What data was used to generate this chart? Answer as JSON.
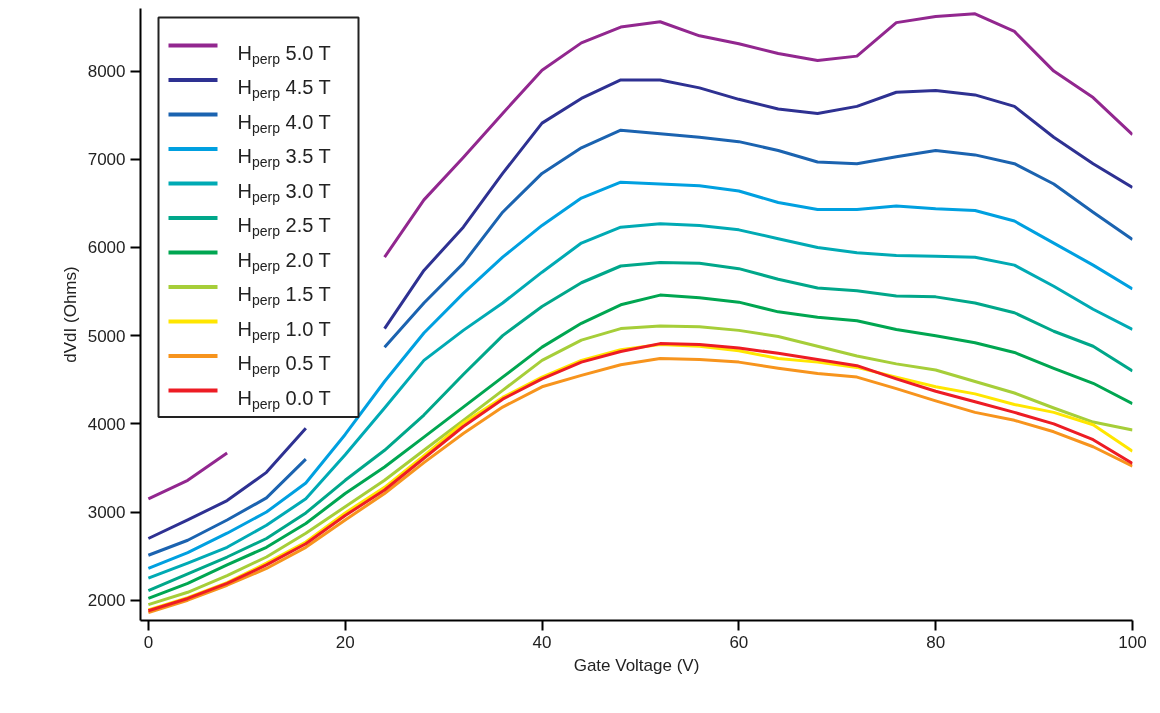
{
  "chart_data": {
    "type": "line",
    "xlabel": "Gate Voltage (V)",
    "ylabel": "dVdI (Ohms)",
    "xlim": [
      -0.8,
      100
    ],
    "ylim": [
      1770,
      8710
    ],
    "xticks": [
      0,
      20,
      40,
      60,
      80,
      100
    ],
    "yticks": [
      2000,
      3000,
      4000,
      5000,
      6000,
      7000,
      8000
    ],
    "grid": false,
    "legend": "top left",
    "marker": "none",
    "line_style": "solid",
    "x": [
      0,
      4,
      8,
      12,
      16,
      20,
      24,
      28,
      32,
      36,
      40,
      44,
      48,
      52,
      56,
      60,
      64,
      68,
      72,
      76,
      80,
      84,
      88,
      92,
      96,
      100
    ],
    "series": [
      {
        "name": "H$_{perp}$ 5.0 T",
        "color": "#92278f",
        "values": [
          3150,
          3360,
          3670,
          null,
          null,
          null,
          5890,
          6540,
          7020,
          7520,
          8010,
          8320,
          8500,
          8560,
          8400,
          8310,
          8200,
          8120,
          8170,
          8550,
          8620,
          8650,
          8450,
          8000,
          7700,
          7280
        ]
      },
      {
        "name": "H$_{perp}$ 4.5 T",
        "color": "#2e3192",
        "values": [
          2700,
          2910,
          3130,
          3450,
          3950,
          null,
          5080,
          5740,
          6230,
          6840,
          7410,
          7690,
          7900,
          7900,
          7810,
          7680,
          7570,
          7520,
          7600,
          7760,
          7780,
          7730,
          7600,
          7250,
          6950,
          6680
        ]
      },
      {
        "name": "H$_{perp}$ 4.0 T",
        "color": "#1b63b0",
        "values": [
          2510,
          2680,
          2910,
          3160,
          3600,
          null,
          4870,
          5370,
          5820,
          6400,
          6840,
          7130,
          7330,
          7290,
          7250,
          7200,
          7100,
          6970,
          6950,
          7030,
          7100,
          7050,
          6950,
          6720,
          6400,
          6090
        ]
      },
      {
        "name": "H$_{perp}$ 3.5 T",
        "color": "#00a0e0",
        "values": [
          2360,
          2540,
          2760,
          3000,
          3330,
          3880,
          4480,
          5030,
          5480,
          5890,
          6250,
          6560,
          6740,
          6720,
          6700,
          6640,
          6510,
          6430,
          6430,
          6470,
          6440,
          6420,
          6300,
          6050,
          5800,
          5530
        ]
      },
      {
        "name": "H$_{perp}$ 3.0 T",
        "color": "#00aab4",
        "values": [
          2250,
          2420,
          2600,
          2850,
          3150,
          3650,
          4180,
          4720,
          5060,
          5370,
          5720,
          6050,
          6230,
          6270,
          6250,
          6200,
          6100,
          6000,
          5940,
          5910,
          5900,
          5890,
          5800,
          5560,
          5300,
          5070
        ]
      },
      {
        "name": "H$_{perp}$ 2.5 T",
        "color": "#00a78a",
        "values": [
          2110,
          2300,
          2490,
          2700,
          2990,
          3360,
          3700,
          4100,
          4560,
          5000,
          5330,
          5600,
          5790,
          5830,
          5820,
          5760,
          5640,
          5540,
          5510,
          5450,
          5440,
          5370,
          5260,
          5050,
          4880,
          4600
        ]
      },
      {
        "name": "H$_{perp}$ 2.0 T",
        "color": "#00a651",
        "values": [
          2020,
          2190,
          2400,
          2600,
          2870,
          3210,
          3510,
          3850,
          4190,
          4530,
          4870,
          5140,
          5350,
          5460,
          5430,
          5380,
          5270,
          5210,
          5170,
          5070,
          5000,
          4920,
          4810,
          4630,
          4460,
          4230
        ]
      },
      {
        "name": "H$_{perp}$ 1.5 T",
        "color": "#a6ce39",
        "values": [
          1950,
          2090,
          2280,
          2490,
          2760,
          3060,
          3360,
          3700,
          4040,
          4380,
          4720,
          4950,
          5080,
          5110,
          5100,
          5060,
          4990,
          4880,
          4770,
          4680,
          4610,
          4480,
          4350,
          4180,
          4020,
          3930
        ]
      },
      {
        "name": "H$_{perp}$ 1.0 T",
        "color": "#ffe600",
        "values": [
          1890,
          2030,
          2200,
          2420,
          2660,
          2990,
          3280,
          3640,
          4010,
          4300,
          4530,
          4720,
          4840,
          4900,
          4880,
          4830,
          4740,
          4700,
          4640,
          4530,
          4420,
          4340,
          4220,
          4130,
          3990,
          3690
        ]
      },
      {
        "name": "H$_{perp}$ 0.5 T",
        "color": "#f7941d",
        "values": [
          1860,
          2000,
          2170,
          2360,
          2600,
          2910,
          3210,
          3560,
          3890,
          4190,
          4420,
          4550,
          4670,
          4740,
          4730,
          4700,
          4630,
          4570,
          4530,
          4400,
          4260,
          4130,
          4040,
          3910,
          3740,
          3520
        ]
      },
      {
        "name": "H$_{perp}$ 0.0 T",
        "color": "#ed1c24",
        "values": [
          1880,
          2020,
          2190,
          2400,
          2640,
          2960,
          3250,
          3610,
          3970,
          4280,
          4510,
          4700,
          4820,
          4910,
          4900,
          4860,
          4800,
          4730,
          4660,
          4510,
          4370,
          4250,
          4130,
          4000,
          3820,
          3550
        ]
      }
    ]
  }
}
